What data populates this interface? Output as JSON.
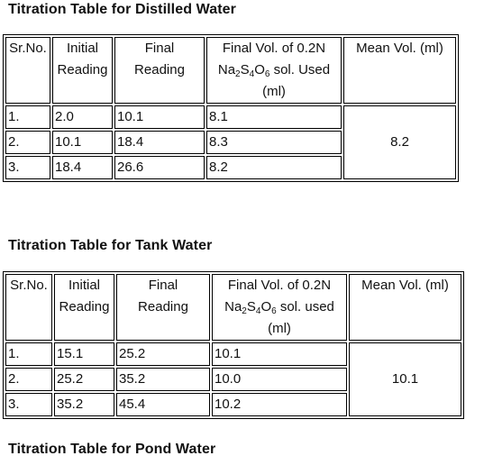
{
  "tables": [
    {
      "title": "Titration Table for Distilled Water",
      "headers": {
        "sr_no": "Sr.No.",
        "initial": [
          "Initial",
          "Reading"
        ],
        "final": [
          "Final",
          "Reading"
        ],
        "vol_line1": "Final Vol. of 0.2N",
        "vol_formula": [
          "Na",
          "2",
          "S",
          "4",
          "O",
          "6"
        ],
        "vol_line2_rest": " sol. Used",
        "vol_line3": "(ml)",
        "mean": "Mean Vol. (ml)"
      },
      "rows": [
        {
          "sr": "1.",
          "initial": "2.0",
          "final": "10.1",
          "vol": "8.1"
        },
        {
          "sr": "2.",
          "initial": "10.1",
          "final": "18.4",
          "vol": "8.3"
        },
        {
          "sr": "3.",
          "initial": "18.4",
          "final": "26.6",
          "vol": "8.2"
        }
      ],
      "mean_value": "8.2"
    },
    {
      "title": "Titration Table for Tank Water",
      "headers": {
        "sr_no": "Sr.No.",
        "initial": [
          "Initial",
          "Reading"
        ],
        "final": [
          "Final",
          "Reading"
        ],
        "vol_line1": "Final Vol. of 0.2N",
        "vol_formula": [
          "Na",
          "2",
          "S",
          "4",
          "O",
          "6"
        ],
        "vol_line2_rest": " sol. used",
        "vol_line3": "(ml)",
        "mean": "Mean Vol. (ml)"
      },
      "rows": [
        {
          "sr": "1.",
          "initial": "15.1",
          "final": "25.2",
          "vol": "10.1"
        },
        {
          "sr": "2.",
          "initial": "25.2",
          "final": "35.2",
          "vol": "10.0"
        },
        {
          "sr": "3.",
          "initial": "35.2",
          "final": "45.4",
          "vol": "10.2"
        }
      ],
      "mean_value": "10.1"
    }
  ],
  "third_heading": "Titration Table for Pond Water"
}
